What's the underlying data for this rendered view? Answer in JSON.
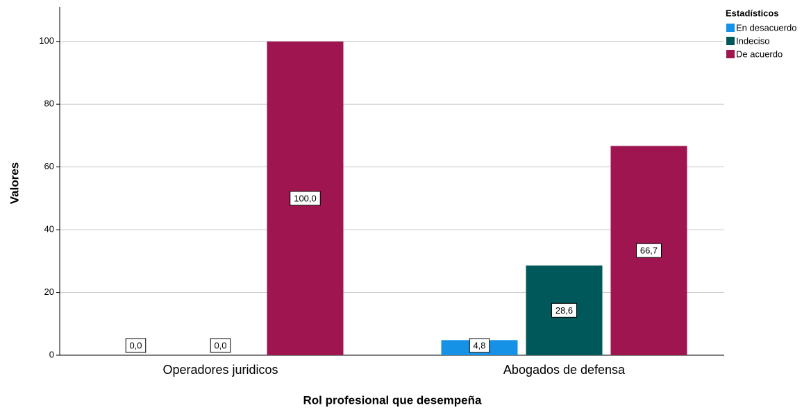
{
  "chart_data": {
    "type": "bar",
    "categories": [
      "Operadores juridicos",
      "Abogados de defensa"
    ],
    "series": [
      {
        "name": "En desacuerdo",
        "color": "#1592e6",
        "values": [
          0,
          4.8
        ],
        "value_labels": [
          "0,0",
          "4,8"
        ]
      },
      {
        "name": "Indeciso",
        "color": "#01585a",
        "values": [
          0,
          28.6
        ],
        "value_labels": [
          "0,0",
          "28,6"
        ]
      },
      {
        "name": "De acuerdo",
        "color": "#9e1550",
        "values": [
          100,
          66.7
        ],
        "value_labels": [
          "100,0",
          "66,7"
        ]
      }
    ],
    "ylabel": "Valores",
    "xlabel": "Rol profesional que desempeña",
    "legend_title": "Estadísticos",
    "legend": "top-right",
    "ylim": [
      0,
      111
    ],
    "yticks": [
      0,
      20,
      40,
      60,
      80,
      100
    ],
    "grid": true
  }
}
